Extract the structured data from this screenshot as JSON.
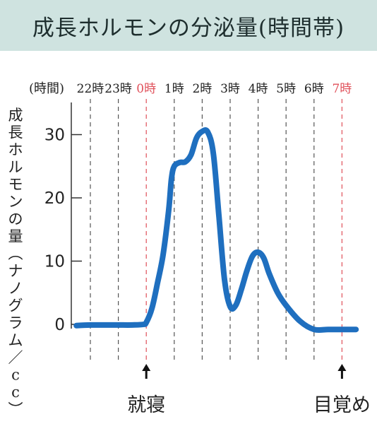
{
  "title": "成長ホルモンの分泌量(時間帯)",
  "chart_data": {
    "type": "line",
    "title": "成長ホルモンの分泌量(時間帯)",
    "xlabel": "(時間)",
    "ylabel": "成長ホルモンの量(ナノグラム/cc)",
    "x_categories": [
      "22時",
      "23時",
      "0時",
      "1時",
      "2時",
      "3時",
      "4時",
      "5時",
      "6時",
      "7時"
    ],
    "x_highlight": [
      "0時",
      "7時"
    ],
    "ylim": [
      0,
      30
    ],
    "yticks": [
      0,
      10,
      20,
      30
    ],
    "series": [
      {
        "color": "#1f6fbf",
        "x": [
          21.5,
          22,
          22.5,
          23,
          23.5,
          23.9,
          24.0,
          24.2,
          24.4,
          24.6,
          24.8,
          24.9,
          25.0,
          25.2,
          25.4,
          25.6,
          25.8,
          26.0,
          26.2,
          26.4,
          26.6,
          26.8,
          27.0,
          27.2,
          27.4,
          27.6,
          27.8,
          28.0,
          28.2,
          28.4,
          28.7,
          29.0,
          29.5,
          30.0,
          30.5,
          31.0,
          31.5
        ],
        "values": [
          -0.2,
          -0.1,
          -0.1,
          -0.1,
          -0.1,
          0.0,
          0.3,
          2.5,
          6.5,
          11,
          18,
          23,
          25,
          25.6,
          25.7,
          26.8,
          29.5,
          30.5,
          30.4,
          27,
          17,
          7,
          2.8,
          3.0,
          5.5,
          8.5,
          10.8,
          11.4,
          10.5,
          8,
          5,
          3,
          0.5,
          -0.8,
          -0.8,
          -0.8,
          -0.8
        ]
      }
    ],
    "annotations": [
      {
        "text": "就寝",
        "x": 24
      },
      {
        "text": "目覚め",
        "x": 31
      }
    ]
  }
}
